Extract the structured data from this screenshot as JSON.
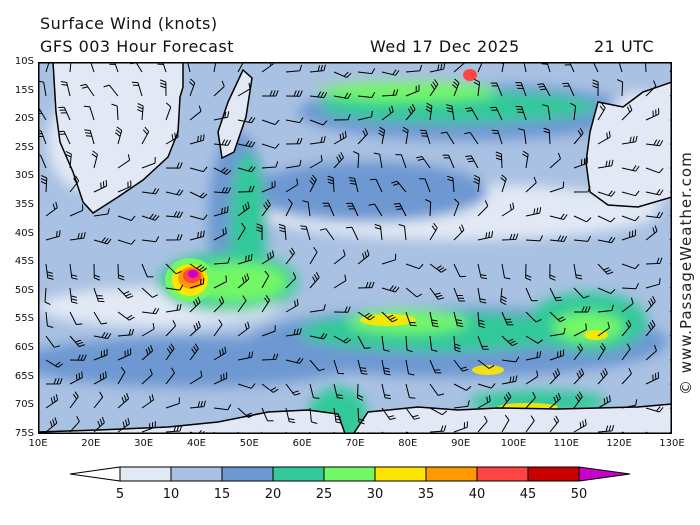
{
  "header": {
    "title": "Surface Wind (knots)",
    "subtitle": "GFS 003 Hour Forecast",
    "date": "Wed 17 Dec 2025",
    "time": "21 UTC"
  },
  "axes": {
    "latitudes": [
      "10S",
      "15S",
      "20S",
      "25S",
      "30S",
      "35S",
      "40S",
      "45S",
      "50S",
      "55S",
      "60S",
      "65S",
      "70S",
      "75S"
    ],
    "longitudes": [
      "10E",
      "20E",
      "30E",
      "40E",
      "50E",
      "60E",
      "70E",
      "80E",
      "90E",
      "100E",
      "110E",
      "120E",
      "130E"
    ]
  },
  "colorbar": {
    "labels": [
      "5",
      "10",
      "15",
      "20",
      "25",
      "30",
      "35",
      "40",
      "45",
      "50"
    ],
    "colors": [
      "#e2e9f5",
      "#a9c1e2",
      "#6d98d2",
      "#33c99a",
      "#72f865",
      "#ffe600",
      "#ff9900",
      "#ff4444",
      "#c80000",
      "#c800c8"
    ]
  },
  "watermark": "© www.PassageWeather.com"
}
